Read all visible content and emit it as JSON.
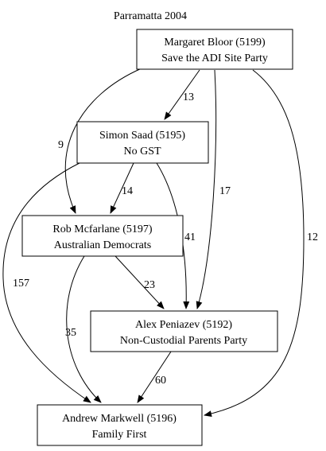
{
  "title": "Parramatta 2004",
  "nodes": {
    "bloor": {
      "line1": "Margaret Bloor (5199)",
      "line2": "Save the ADI Site Party"
    },
    "saad": {
      "line1": "Simon Saad (5195)",
      "line2": "No GST"
    },
    "mcfarlane": {
      "line1": "Rob Mcfarlane (5197)",
      "line2": "Australian Democrats"
    },
    "peniazev": {
      "line1": "Alex Peniazev (5192)",
      "line2": "Non-Custodial Parents Party"
    },
    "markwell": {
      "line1": "Andrew Markwell (5196)",
      "line2": "Family First"
    }
  },
  "edges": {
    "bloor_saad": "13",
    "bloor_mcfarlane": "9",
    "bloor_peniazev": "17",
    "bloor_markwell": "12",
    "saad_mcfarlane": "14",
    "saad_peniazev": "41",
    "saad_markwell": "157",
    "mcfarlane_peniazev": "23",
    "mcfarlane_markwell": "35",
    "peniazev_markwell": "60"
  }
}
